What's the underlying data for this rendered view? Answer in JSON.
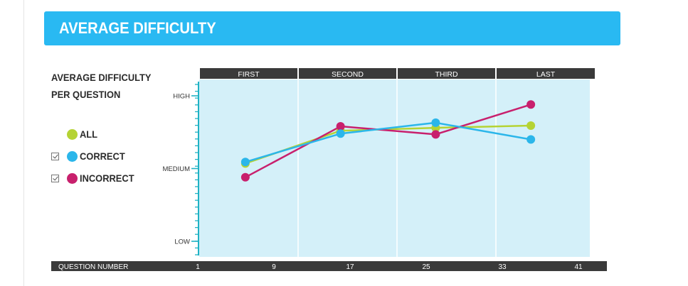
{
  "header": {
    "title": "AVERAGE DIFFICULTY"
  },
  "side_title": {
    "line1": "AVERAGE DIFFICULTY",
    "line2": "PER QUESTION"
  },
  "legend": [
    {
      "label": "ALL",
      "color": "#b5d334",
      "checkbox": false
    },
    {
      "label": "CORRECT",
      "color": "#2bb6ea",
      "checkbox": true
    },
    {
      "label": "INCORRECT",
      "color": "#c8206d",
      "checkbox": true
    }
  ],
  "chart_data": {
    "type": "line",
    "quartiles": [
      "FIRST",
      "SECOND",
      "THIRD",
      "LAST"
    ],
    "y_ticks": [
      "HIGH",
      "MEDIUM",
      "LOW"
    ],
    "ylim": [
      1,
      3
    ],
    "x_ticks": [
      1,
      9,
      17,
      25,
      33,
      41
    ],
    "xlim": [
      1,
      41
    ],
    "xlabel": "QUESTION NUMBER",
    "grid": false,
    "colors": {
      "plot_bg": "#d4f0f9",
      "axis": "#1fb2c4",
      "bar": "#3a3a3a"
    },
    "series": [
      {
        "name": "ALL",
        "color": "#b5d334",
        "x": [
          6,
          16,
          26,
          36
        ],
        "y": [
          2.07,
          2.52,
          2.56,
          2.59
        ]
      },
      {
        "name": "CORRECT",
        "color": "#2bb6ea",
        "x": [
          6,
          16,
          26,
          36
        ],
        "y": [
          2.09,
          2.48,
          2.63,
          2.4
        ]
      },
      {
        "name": "INCORRECT",
        "color": "#c8206d",
        "x": [
          6,
          16,
          26,
          36
        ],
        "y": [
          1.88,
          2.58,
          2.47,
          2.88
        ]
      }
    ]
  }
}
